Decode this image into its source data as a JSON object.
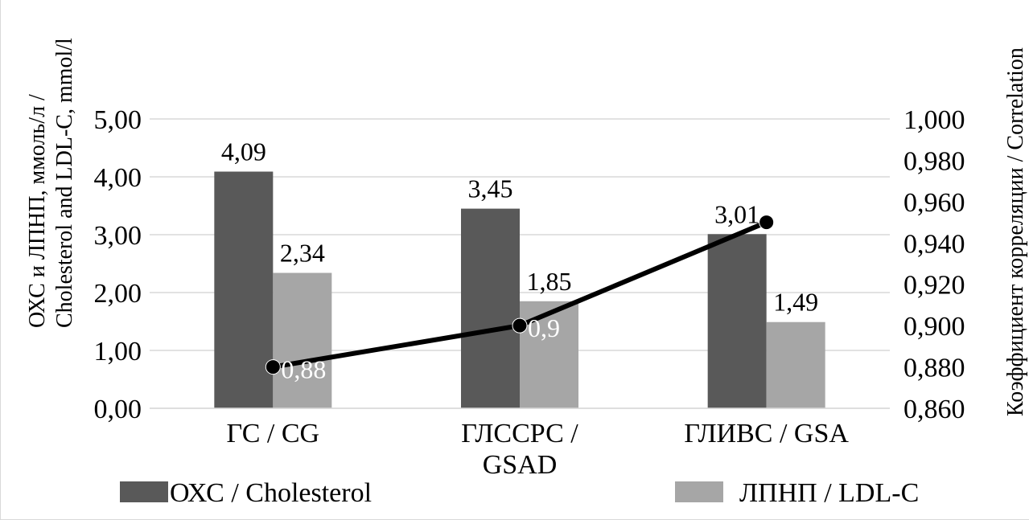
{
  "chart_data": {
    "type": "bar",
    "categories": [
      [
        "ГС / CG"
      ],
      [
        "ГЛССРС /",
        "GSAD"
      ],
      [
        "ГЛИВС / GSA"
      ]
    ],
    "series": [
      {
        "name": "ОХС / Cholesterol",
        "values": [
          4.09,
          3.45,
          3.01
        ],
        "color": "#595959",
        "labels": [
          "4,09",
          "3,45",
          "3,01"
        ]
      },
      {
        "name": "ЛПНП / LDL-C",
        "values": [
          2.34,
          1.85,
          1.49
        ],
        "color": "#a6a6a6",
        "labels": [
          "2,34",
          "1,85",
          "1,49"
        ]
      }
    ],
    "line_series": {
      "values": [
        0.88,
        0.9,
        0.95
      ],
      "labels": [
        "0,88",
        "0,9",
        ""
      ],
      "color": "#000000",
      "axis": "right"
    },
    "y_left": {
      "lim": [
        0,
        5
      ],
      "ticks": [
        "0,00",
        "1,00",
        "2,00",
        "3,00",
        "4,00",
        "5,00"
      ],
      "label_line1": "ОХС и ЛПНП, ммоль/л /",
      "label_line2": "Cholesterol and LDL-C, mmol/l"
    },
    "y_right": {
      "lim": [
        0.86,
        1.0
      ],
      "ticks": [
        "0,860",
        "0,880",
        "0,900",
        "0,920",
        "0,940",
        "0,960",
        "0,980",
        "1,000"
      ],
      "label": "Коэффициент корреляции / Correlation"
    },
    "grid": true,
    "legend": "bottom"
  }
}
